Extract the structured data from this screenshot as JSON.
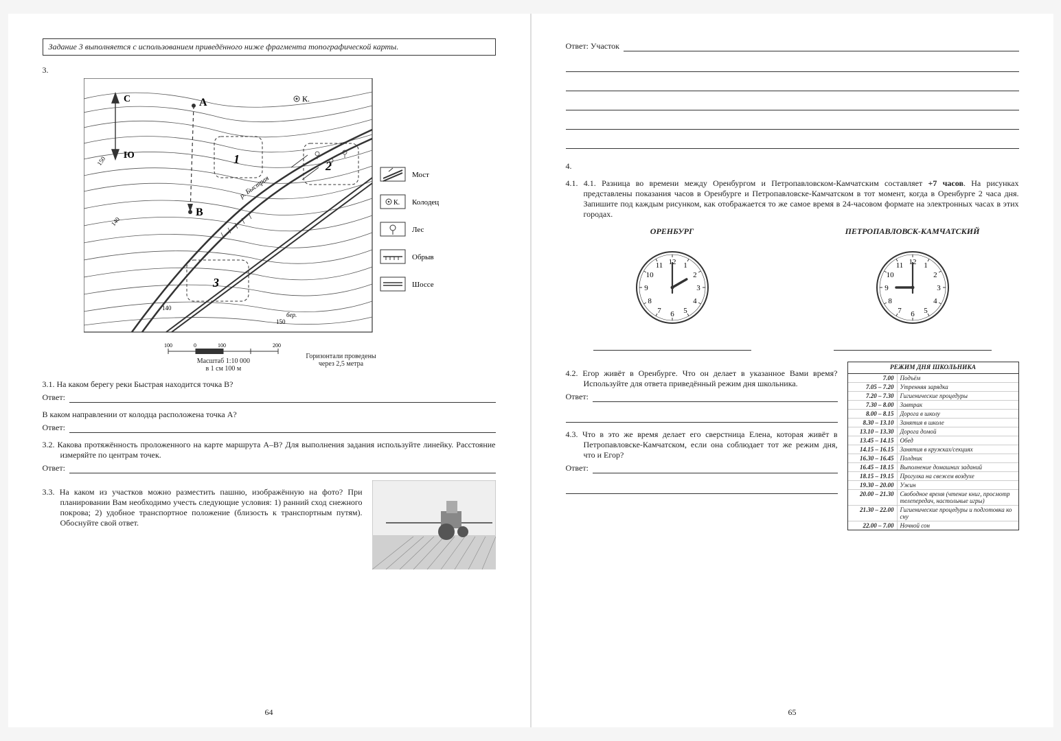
{
  "left": {
    "instruction": "Задание 3 выполняется с использованием приведённого ниже фрагмента топографической карты.",
    "task_num": "3.",
    "map": {
      "north_label": "С",
      "south_label": "Ю",
      "point_a": "А",
      "point_b": "В",
      "well_symbol": "⊙К.",
      "river": "р. Быстрая",
      "bank": "бер.",
      "zone1": "1",
      "zone2": "2",
      "zone3": "3",
      "contour_150": "150",
      "contour_140": "140",
      "legend": {
        "bridge": "Мост",
        "well": "Колодец",
        "forest": "Лес",
        "cliff": "Обрыв",
        "road": "Шоссе"
      },
      "scale_ticks": [
        "100",
        "0",
        "100",
        "200"
      ],
      "scale_text1": "Масштаб 1:10 000",
      "scale_text2": "в 1 см 100 м",
      "contour_note1": "Горизонтали проведены",
      "contour_note2": "через 2,5 метра"
    },
    "q31a": "3.1. На каком берегу реки Быстрая находится точка В?",
    "q31b": "В каком направлении от колодца расположена точка А?",
    "q32": "3.2. Какова протяжённость проложенного на карте маршрута А–В? Для выполнения задания используйте линейку. Расстояние измеряйте по центрам точек.",
    "q33": "3.3. На каком из участков можно разместить пашню, изображённую на фото? При планировании Вам необходимо учесть следующие условия: 1) ранний сход снежного покрова; 2) удобное транспортное положение (близость к транспортным путям). Обоснуйте свой ответ.",
    "answer_label": "Ответ:",
    "page_num": "64"
  },
  "right": {
    "answer_plot_label": "Ответ: Участок",
    "task_num": "4.",
    "q41": "4.1. Разница во времени между Оренбургом и Петропавловском-Камчатским составляет +7 часов. На рисунках представлены показания часов в Оренбурге и Петропавловске-Камчатском в тот момент, когда в Оренбурге 2 часа дня. Запишите под каждым рисунком, как отображается то же самое время в 24-часовом формате на электронных часах в этих городах.",
    "city1": "ОРЕНБУРГ",
    "city2": "ПЕТРОПАВЛОВСК-КАМЧАТСКИЙ",
    "clock1": {
      "hour": 2,
      "minute": 0
    },
    "clock2": {
      "hour": 9,
      "minute": 0
    },
    "q42": "4.2. Егор живёт в Оренбурге. Что он делает в указанное Вами время? Используйте для ответа приведённый режим дня школьника.",
    "q43": "4.3. Что в это же время делает его сверстница Елена, которая живёт в Петропавловске-Камчатском, если она соблюдает тот же режим дня, что и Егор?",
    "answer_label": "Ответ:",
    "schedule": {
      "title": "РЕЖИМ ДНЯ ШКОЛЬНИКА",
      "rows": [
        {
          "time": "7.00",
          "act": "Подъём"
        },
        {
          "time": "7.05 – 7.20",
          "act": "Утренняя зарядка"
        },
        {
          "time": "7.20 – 7.30",
          "act": "Гигиенические процедуры"
        },
        {
          "time": "7.30 – 8.00",
          "act": "Завтрак"
        },
        {
          "time": "8.00 – 8.15",
          "act": "Дорога в школу"
        },
        {
          "time": "8.30 – 13.10",
          "act": "Занятия в школе"
        },
        {
          "time": "13.10 – 13.30",
          "act": "Дорога домой"
        },
        {
          "time": "13.45 – 14.15",
          "act": "Обед"
        },
        {
          "time": "14.15 – 16.15",
          "act": "Занятия в кружках/секциях"
        },
        {
          "time": "16.30 – 16.45",
          "act": "Полдник"
        },
        {
          "time": "16.45 – 18.15",
          "act": "Выполнение домашних заданий"
        },
        {
          "time": "18.15 – 19.15",
          "act": "Прогулка на свежем воздухе"
        },
        {
          "time": "19.30 – 20.00",
          "act": "Ужин"
        },
        {
          "time": "20.00 – 21.30",
          "act": "Свободное время (чтение книг, просмотр телепередач, настольные игры)"
        },
        {
          "time": "21.30 – 22.00",
          "act": "Гигиенические процедуры и подготовка ко сну"
        },
        {
          "time": "22.00 – 7.00",
          "act": "Ночной сон"
        }
      ]
    },
    "page_num": "65"
  },
  "colors": {
    "line": "#333333",
    "light": "#888888",
    "fill_light": "#e8e8e8"
  }
}
